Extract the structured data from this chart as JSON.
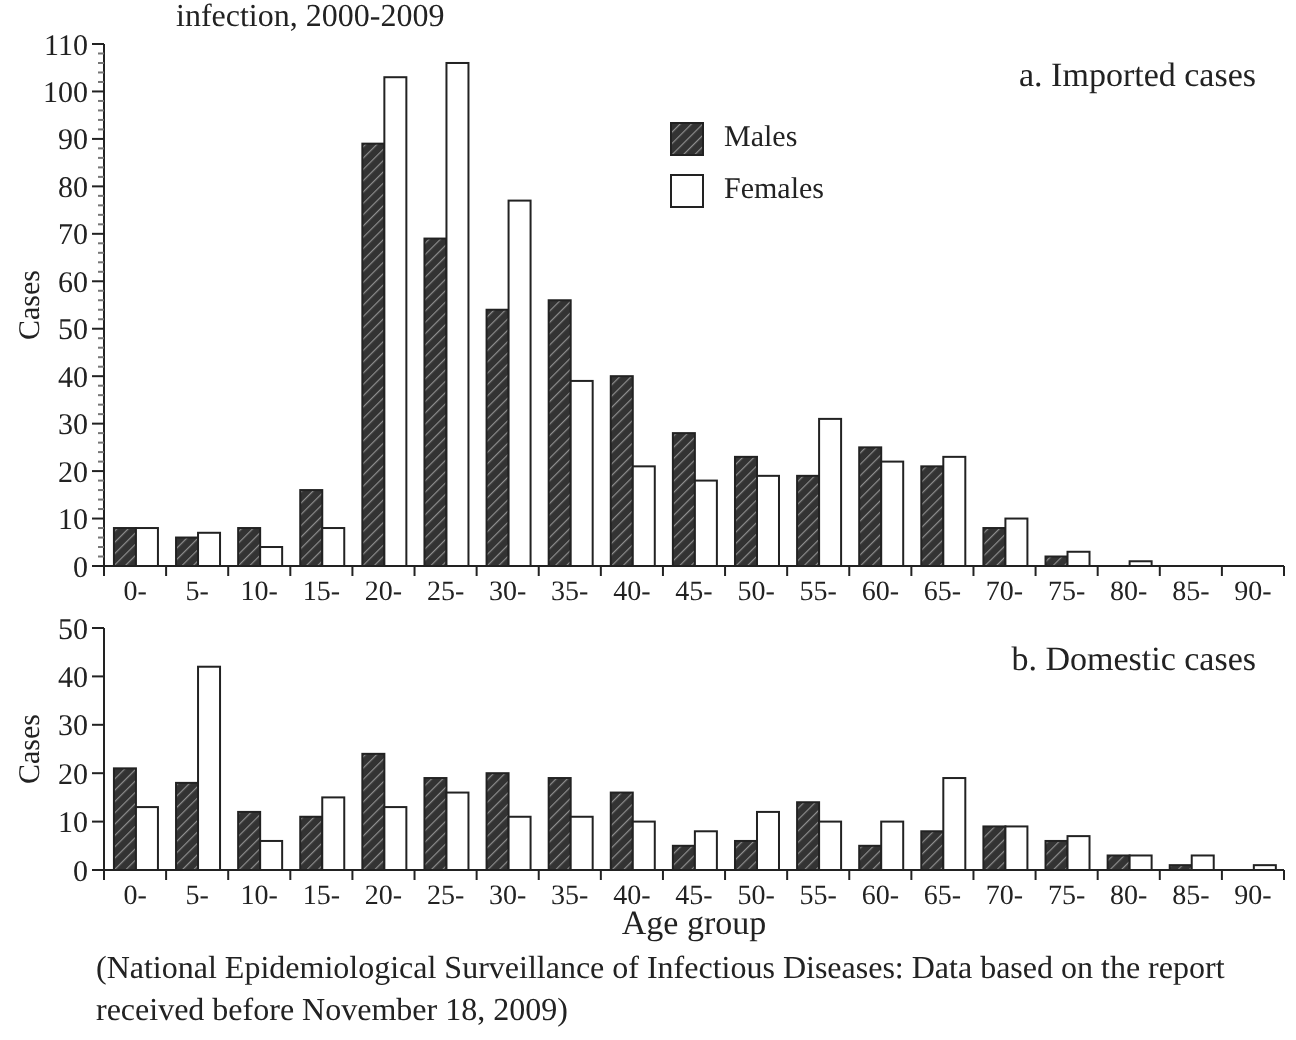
{
  "chart_data": [
    {
      "type": "bar",
      "title": "infection, 2000-2009",
      "annotations": [
        "a. Imported cases"
      ],
      "ylabel": "Cases",
      "categories": [
        "0-",
        "5-",
        "10-",
        "15-",
        "20-",
        "25-",
        "30-",
        "35-",
        "40-",
        "45-",
        "50-",
        "55-",
        "60-",
        "65-",
        "70-",
        "75-",
        "80-",
        "85-",
        "90-"
      ],
      "series": [
        {
          "name": "Males",
          "color": "#333333",
          "values": [
            8,
            6,
            8,
            16,
            89,
            69,
            54,
            56,
            40,
            28,
            23,
            19,
            25,
            21,
            8,
            2,
            0,
            0,
            0
          ]
        },
        {
          "name": "Females",
          "color": "#ffffff",
          "values": [
            8,
            7,
            4,
            8,
            103,
            106,
            77,
            39,
            21,
            18,
            19,
            31,
            22,
            23,
            10,
            3,
            1,
            0,
            0
          ]
        }
      ],
      "ylim": [
        0,
        110
      ],
      "yticks": [
        0,
        {
          "value": 2,
          "label": null
        },
        {
          "value": 4,
          "label": null
        },
        {
          "value": 6,
          "label": null
        },
        {
          "value": 8,
          "label": null
        },
        10,
        {
          "value": 12,
          "label": null
        },
        {
          "value": 14,
          "label": null
        },
        {
          "value": 16,
          "label": null
        },
        {
          "value": 18,
          "label": null
        },
        20,
        {
          "value": 22,
          "label": null
        },
        {
          "value": 24,
          "label": null
        },
        {
          "value": 26,
          "label": null
        },
        {
          "value": 28,
          "label": null
        },
        30,
        {
          "value": 32,
          "label": null
        },
        {
          "value": 34,
          "label": null
        },
        {
          "value": 36,
          "label": null
        },
        {
          "value": 38,
          "label": null
        },
        40,
        {
          "value": 42,
          "label": null
        },
        {
          "value": 44,
          "label": null
        },
        {
          "value": 46,
          "label": null
        },
        {
          "value": 48,
          "label": null
        },
        50,
        {
          "value": 52,
          "label": null
        },
        {
          "value": 54,
          "label": null
        },
        {
          "value": 56,
          "label": null
        },
        {
          "value": 58,
          "label": null
        },
        60,
        {
          "value": 62,
          "label": null
        },
        {
          "value": 64,
          "label": null
        },
        {
          "value": 66,
          "label": null
        },
        {
          "value": 68,
          "label": null
        },
        70,
        {
          "value": 72,
          "label": null
        },
        {
          "value": 74,
          "label": null
        },
        {
          "value": 76,
          "label": null
        },
        {
          "value": 78,
          "label": null
        },
        80,
        {
          "value": 82,
          "label": null
        },
        {
          "value": 84,
          "label": null
        },
        {
          "value": 86,
          "label": null
        },
        {
          "value": 88,
          "label": null
        },
        90,
        {
          "value": 92,
          "label": null
        },
        {
          "value": 94,
          "label": null
        },
        {
          "value": 96,
          "label": null
        },
        {
          "value": 98,
          "label": null
        },
        100,
        {
          "value": 102,
          "label": null
        },
        {
          "value": 104,
          "label": null
        },
        {
          "value": 106,
          "label": null
        },
        {
          "value": 108,
          "label": null
        },
        110
      ],
      "legend": "top right"
    },
    {
      "type": "bar",
      "annotations": [
        "b. Domestic cases",
        "(National Epidemiological Surveillance of Infectious Diseases: Data based on the report received before November 18, 2009)"
      ],
      "xlabel": "Age group",
      "ylabel": "Cases",
      "categories": [
        "0-",
        "5-",
        "10-",
        "15-",
        "20-",
        "25-",
        "30-",
        "35-",
        "40-",
        "45-",
        "50-",
        "55-",
        "60-",
        "65-",
        "70-",
        "75-",
        "80-",
        "85-",
        "90-"
      ],
      "series": [
        {
          "color": "#333333",
          "values": [
            21,
            18,
            12,
            11,
            24,
            19,
            20,
            19,
            16,
            5,
            6,
            14,
            5,
            8,
            9,
            6,
            3,
            1,
            0
          ]
        },
        {
          "color": "#ffffff",
          "values": [
            13,
            42,
            6,
            15,
            13,
            16,
            11,
            11,
            10,
            8,
            12,
            10,
            10,
            19,
            9,
            7,
            3,
            3,
            1
          ]
        }
      ],
      "ylim": [
        0,
        50
      ],
      "yticks": [
        0,
        10,
        20,
        30,
        40,
        50
      ]
    }
  ]
}
